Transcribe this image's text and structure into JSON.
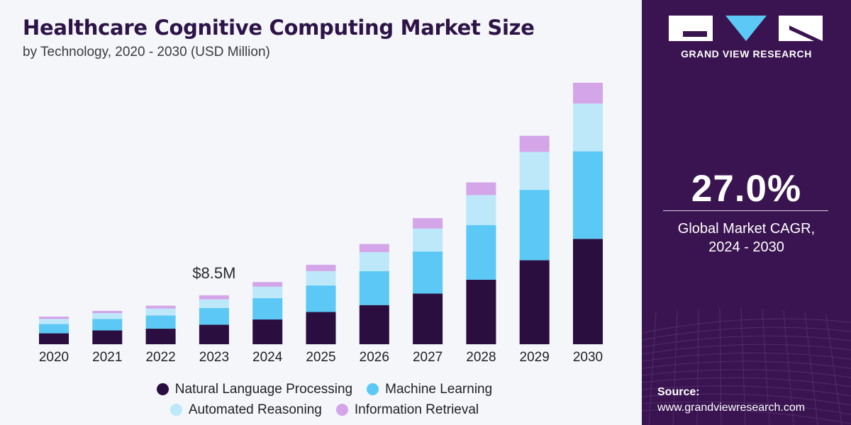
{
  "header": {
    "title": "Healthcare Cognitive Computing Market Size",
    "subtitle": "by Technology, 2020 - 2030 (USD Million)"
  },
  "colors": {
    "nlp": "#2b0e40",
    "ml": "#5bc8f5",
    "ar": "#bde8fa",
    "ir": "#d4a5e8",
    "panel": "#3a1450"
  },
  "chart_data": {
    "type": "bar",
    "stacked": true,
    "title": "Healthcare Cognitive Computing Market Size",
    "subtitle": "by Technology, 2020 - 2030 (USD Million)",
    "categories": [
      "2020",
      "2021",
      "2022",
      "2023",
      "2024",
      "2025",
      "2026",
      "2027",
      "2028",
      "2029",
      "2030"
    ],
    "series": [
      {
        "name": "Natural Language Processing",
        "values": [
          1.9,
          2.4,
          2.7,
          3.4,
          4.3,
          5.6,
          6.8,
          8.8,
          11.2,
          14.6,
          18.3
        ]
      },
      {
        "name": "Machine Learning",
        "values": [
          1.6,
          2.0,
          2.3,
          2.9,
          3.7,
          4.6,
          5.9,
          7.3,
          9.5,
          12.2,
          15.2
        ]
      },
      {
        "name": "Automated Reasoning",
        "values": [
          0.9,
          1.0,
          1.2,
          1.5,
          2.0,
          2.5,
          3.3,
          4.0,
          5.2,
          6.6,
          8.3
        ]
      },
      {
        "name": "Information Retrieval",
        "values": [
          0.4,
          0.4,
          0.5,
          0.7,
          0.8,
          1.1,
          1.4,
          1.8,
          2.2,
          2.8,
          3.6
        ]
      }
    ],
    "annotations": [
      {
        "category": "2023",
        "text": "$8.5M"
      }
    ],
    "ylim": [
      0,
      46
    ],
    "grid": false,
    "legend_position": "bottom"
  },
  "legend": {
    "items": [
      {
        "label": "Natural Language Processing",
        "color": "#2b0e40"
      },
      {
        "label": "Machine Learning",
        "color": "#5bc8f5"
      },
      {
        "label": "Automated Reasoning",
        "color": "#bde8fa"
      },
      {
        "label": "Information Retrieval",
        "color": "#d4a5e8"
      }
    ]
  },
  "sidebar": {
    "brand": "GRAND VIEW RESEARCH",
    "cagr_value": "27.0%",
    "cagr_label_line1": "Global Market CAGR,",
    "cagr_label_line2": "2024 - 2030",
    "source_label": "Source:",
    "source_url": "www.grandviewresearch.com"
  }
}
